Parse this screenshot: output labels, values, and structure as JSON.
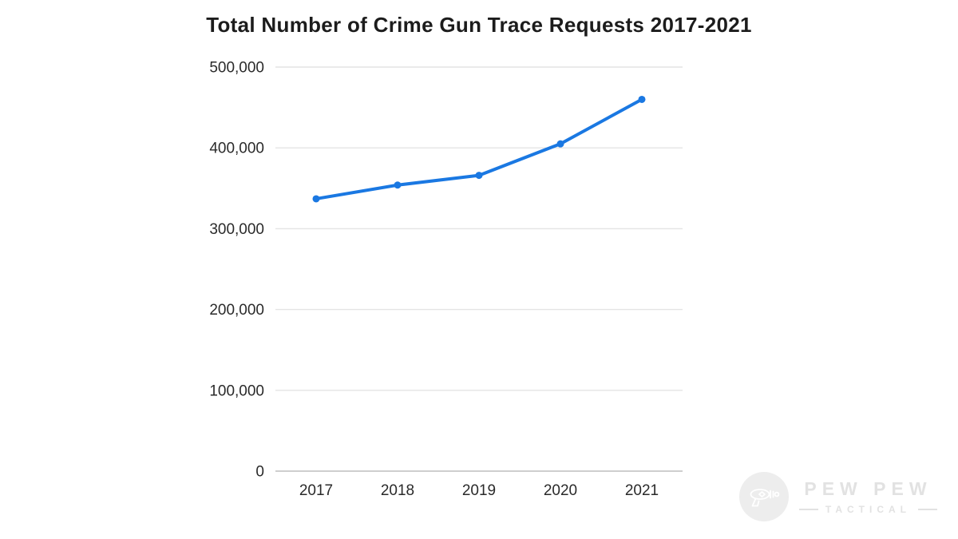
{
  "page": {
    "background": "#ffffff"
  },
  "chart_data": {
    "type": "line",
    "title": "Total Number of Crime Gun Trace Requests 2017-2021",
    "categories": [
      "2017",
      "2018",
      "2019",
      "2020",
      "2021"
    ],
    "series": [
      {
        "name": "Crime Gun Trace Requests",
        "values": [
          337000,
          354000,
          366000,
          405000,
          460000
        ]
      }
    ],
    "xlabel": "",
    "ylabel": "",
    "ylim": [
      0,
      500000
    ],
    "yticks": [
      0,
      100000,
      200000,
      300000,
      400000,
      500000
    ],
    "ytick_labels": [
      "0",
      "100,000",
      "200,000",
      "300,000",
      "400,000",
      "500,000"
    ],
    "grid": true,
    "legend_position": "none",
    "line_color": "#1a78e2",
    "point_color": "#1a78e2",
    "grid_color": "#e4e4e4",
    "axis_line_color": "#bdbdbd",
    "text_color": "#2a2a2a"
  },
  "watermark": {
    "brand_top": "PEW PEW",
    "brand_bottom": "TACTICAL",
    "icon": "ray-gun-icon",
    "color": "#e2e2e2",
    "badge_color": "#ededed"
  }
}
